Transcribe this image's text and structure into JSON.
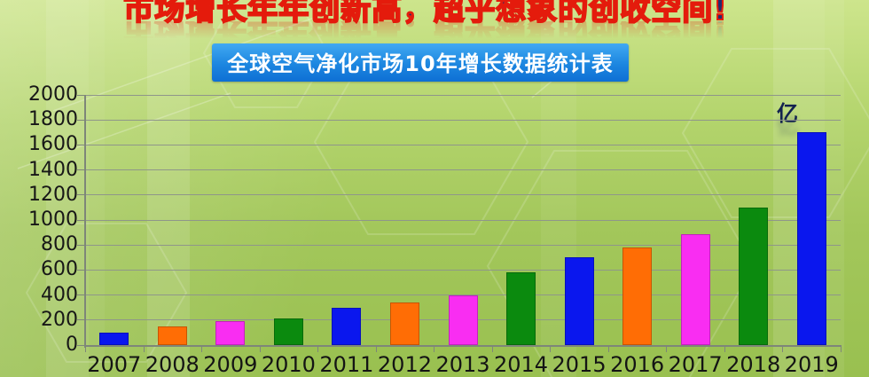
{
  "header": {
    "title": "市场增长年年创新高，超乎想象的创收空间!",
    "banner": "全球空气净化市场10年增长数据统计表"
  },
  "chart_data": {
    "type": "bar",
    "title": "全球空气净化市场10年增长数据统计表",
    "unit_label": "亿",
    "categories": [
      "2007",
      "2008",
      "2009",
      "2010",
      "2011",
      "2012",
      "2013",
      "2014",
      "2015",
      "2016",
      "2017",
      "2018",
      "2019"
    ],
    "values": [
      100,
      150,
      190,
      210,
      300,
      340,
      400,
      580,
      700,
      780,
      890,
      1100,
      1700
    ],
    "ylim": [
      0,
      2000
    ],
    "ytick_step": 200,
    "ytick_labels": [
      "0",
      "200",
      "400",
      "600",
      "800",
      "1000",
      "1200",
      "1400",
      "1600",
      "1800",
      "2000"
    ],
    "grid": true,
    "legend": "none",
    "bar_color_cycle": [
      "#0a17ee",
      "#ff6d05",
      "#f92df2",
      "#0b8a0e"
    ]
  },
  "colors": {
    "title_fill": "#1f2c6e",
    "title_outline": "#e41b0c",
    "banner_top": "#41a9f2",
    "banner_bottom": "#0e6fd4",
    "banner_text": "#ffffff",
    "gridline": "#8f968a",
    "axis": "#7e8679",
    "label_text": "#171717"
  }
}
